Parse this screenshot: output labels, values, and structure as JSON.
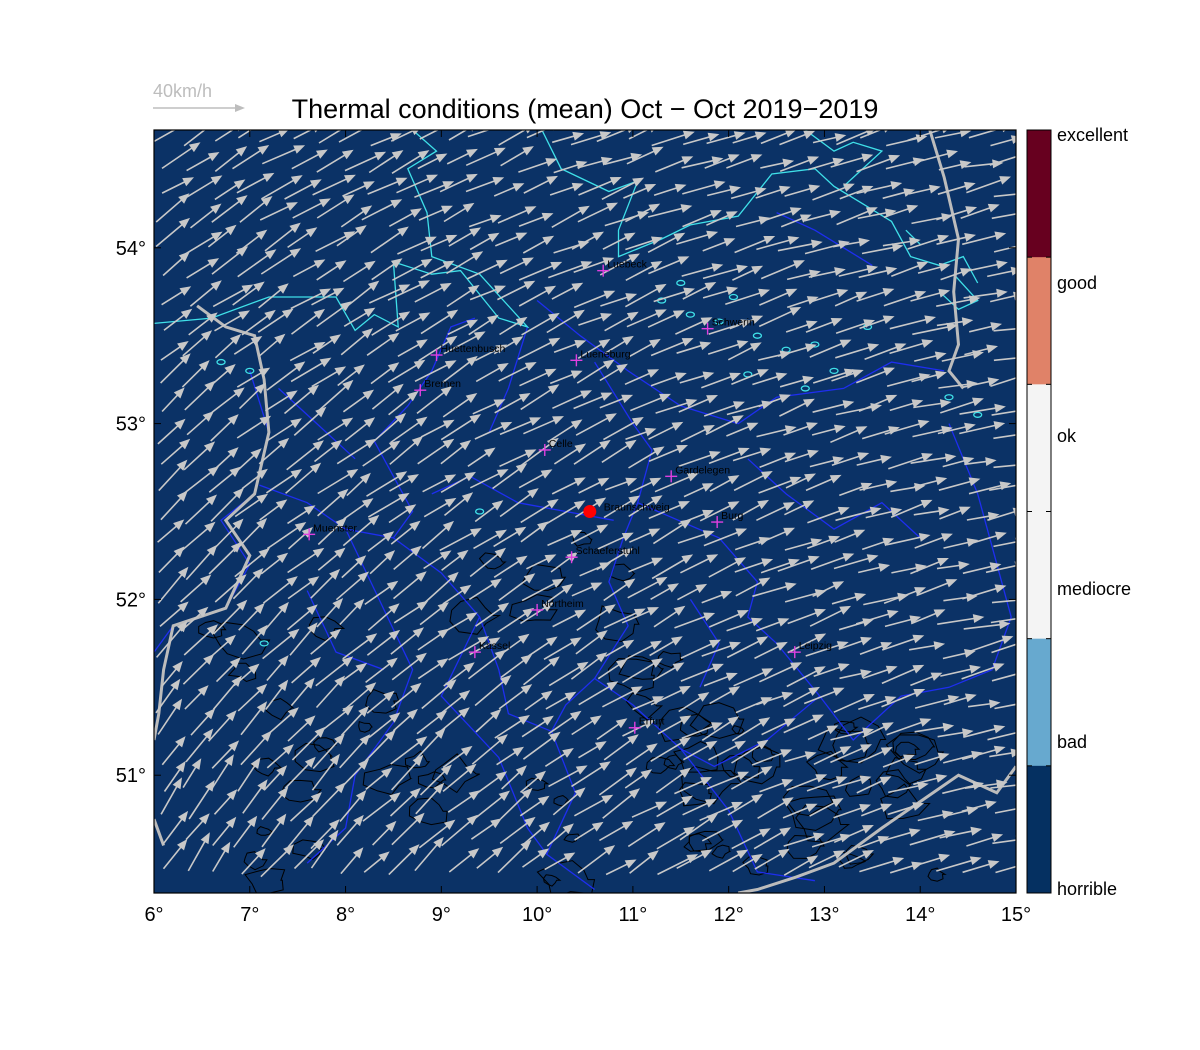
{
  "title": "Thermal conditions (mean) Oct − Oct  2019−2019",
  "wind_scale_label": "40km/h",
  "x_ticks": [
    "6°",
    "7°",
    "8°",
    "9°",
    "10°",
    "11°",
    "12°",
    "13°",
    "14°",
    "15°"
  ],
  "y_ticks": [
    "51°",
    "52°",
    "53°",
    "54°"
  ],
  "map_extent": {
    "lon": [
      6,
      15
    ],
    "lat": [
      50.33,
      54.67
    ]
  },
  "colorbar": {
    "labels": [
      "excellent",
      "good",
      "ok",
      "mediocre",
      "bad",
      "horrible"
    ],
    "bands": [
      {
        "name": "excellent",
        "color": "#67001f"
      },
      {
        "name": "good",
        "color": "#e08268"
      },
      {
        "name": "ok",
        "color": "#f4f4f4"
      },
      {
        "name": "mediocre",
        "color": "#f4f4f4"
      },
      {
        "name": "bad",
        "color": "#67a9cf"
      },
      {
        "name": "horrible",
        "color": "#053061"
      }
    ]
  },
  "cities": [
    {
      "name": "Luebeck",
      "lon": 10.69,
      "lat": 53.87
    },
    {
      "name": "Schwerin",
      "lon": 11.78,
      "lat": 53.54
    },
    {
      "name": "Huettenbusch",
      "lon": 8.95,
      "lat": 53.39
    },
    {
      "name": "Lueneburg",
      "lon": 10.41,
      "lat": 53.36
    },
    {
      "name": "Bremen",
      "lon": 8.78,
      "lat": 53.19
    },
    {
      "name": "Celle",
      "lon": 10.08,
      "lat": 52.85
    },
    {
      "name": "Gardelegen",
      "lon": 11.4,
      "lat": 52.7
    },
    {
      "name": "Burg",
      "lon": 11.88,
      "lat": 52.44
    },
    {
      "name": "Muenster",
      "lon": 7.62,
      "lat": 52.37
    },
    {
      "name": "Schaeferstuhl",
      "lon": 10.36,
      "lat": 52.24
    },
    {
      "name": "Northeim",
      "lon": 10.0,
      "lat": 51.94
    },
    {
      "name": "Kassel",
      "lon": 9.35,
      "lat": 51.7
    },
    {
      "name": "Leipzig",
      "lon": 12.69,
      "lat": 51.7
    },
    {
      "name": "Erfurt",
      "lon": 11.02,
      "lat": 51.27
    }
  ],
  "home_site": {
    "name": "Braunschweig",
    "lon": 10.55,
    "lat": 52.5,
    "color": "#ff0000"
  },
  "colors": {
    "map_fill": "#0b3266",
    "wind_arrows": "#c8c8c8",
    "coastline": "#3fe0e8",
    "borders": "#1e2ef0",
    "rivers": "#bcbcbc",
    "terrain_contours": "#000000",
    "city_markers": "#e040e0"
  }
}
